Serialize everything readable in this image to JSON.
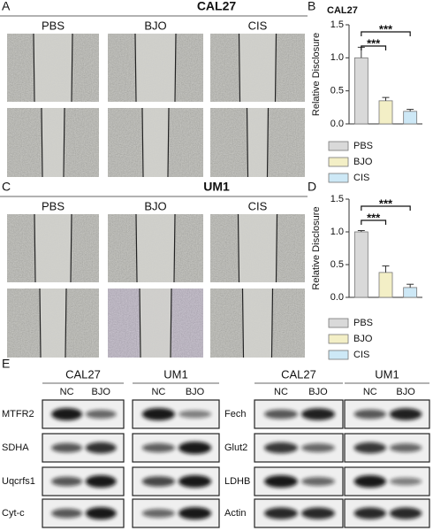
{
  "panels": {
    "A": {
      "letter": "A",
      "title": "CAL27",
      "columns": [
        "PBS",
        "BJO",
        "CIS"
      ]
    },
    "C": {
      "letter": "C",
      "title": "UM1",
      "columns": [
        "PBS",
        "BJO",
        "CIS"
      ]
    },
    "E": {
      "letter": "E",
      "left": {
        "groups": [
          "CAL27",
          "UM1"
        ],
        "lanes": [
          "NC",
          "BJO",
          "NC",
          "BJO"
        ],
        "proteins": [
          "MTFR2",
          "SDHA",
          "Uqcrfs1",
          "Cyt-c"
        ]
      },
      "right": {
        "groups": [
          "CAL27",
          "UM1"
        ],
        "lanes": [
          "NC",
          "BJO",
          "NC",
          "BJO"
        ],
        "proteins": [
          "Fech",
          "Glut2",
          "LDHB",
          "Actin"
        ]
      }
    }
  },
  "chart_data": [
    {
      "type": "bar",
      "letter": "B",
      "title": "CAL27",
      "y_label": "Relative Disclosure",
      "categories": [
        "PBS",
        "BJO",
        "CIS"
      ],
      "values": [
        1.0,
        0.35,
        0.19
      ],
      "errors": [
        0.16,
        0.05,
        0.03
      ],
      "colors": [
        "#d9d9d9",
        "#f3efc6",
        "#cde8f6"
      ],
      "ylim": [
        0,
        1.5
      ],
      "yticks": [
        {
          "value": 0,
          "label": "0.0"
        },
        0.5,
        {
          "value": 1,
          "label": "1.0"
        },
        {
          "value": 1.5,
          "label": "1.5"
        }
      ],
      "annotations": [
        {
          "from": 0,
          "to": 2,
          "label": "***"
        },
        {
          "from": 0,
          "to": 1,
          "label": "***"
        }
      ],
      "legend": "bottom"
    },
    {
      "type": "bar",
      "letter": "D",
      "y_label": "Relative Disclosure",
      "categories": [
        "PBS",
        "BJO",
        "CIS"
      ],
      "values": [
        1.0,
        0.38,
        0.15
      ],
      "errors": [
        0.02,
        0.1,
        0.05
      ],
      "colors": [
        "#d9d9d9",
        "#f3efc6",
        "#cde8f6"
      ],
      "ylim": [
        0,
        1.5
      ],
      "yticks": [
        {
          "value": 0,
          "label": "0.0"
        },
        0.5,
        {
          "value": 1,
          "label": "1.0"
        },
        {
          "value": 1.5,
          "label": "1.5"
        }
      ],
      "annotations": [
        {
          "from": 0,
          "to": 2,
          "label": "***"
        },
        {
          "from": 0,
          "to": 1,
          "label": "***"
        }
      ],
      "legend": "bottom"
    }
  ]
}
